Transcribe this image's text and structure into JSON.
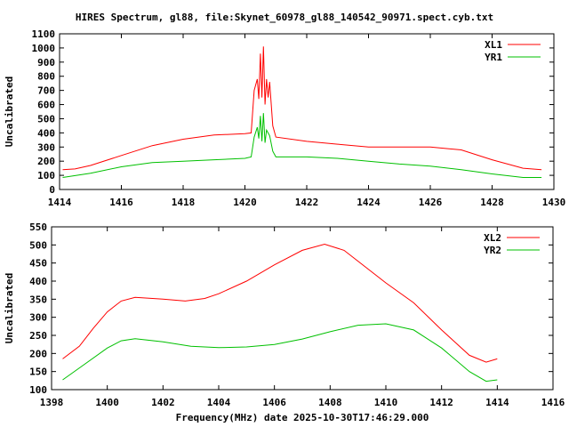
{
  "chart_data": [
    {
      "type": "line",
      "title": "HIRES Spectrum, gl88, file:Skynet_60978_gl88_140542_90971.spect.cyb.txt",
      "xlabel": "",
      "ylabel": "Uncalibrated",
      "xlim": [
        1414,
        1430
      ],
      "ylim": [
        0,
        1100
      ],
      "xticks": [
        1414,
        1416,
        1418,
        1420,
        1422,
        1424,
        1426,
        1428,
        1430
      ],
      "yticks": [
        0,
        100,
        200,
        300,
        400,
        500,
        600,
        700,
        800,
        900,
        1000,
        1100
      ],
      "legend": "top-right",
      "grid": false,
      "series": [
        {
          "name": "XL1",
          "color": "#ff0000",
          "x": [
            1414.1,
            1414.5,
            1415,
            1416,
            1417,
            1418,
            1419,
            1420,
            1420.2,
            1420.3,
            1420.4,
            1420.45,
            1420.5,
            1420.55,
            1420.6,
            1420.65,
            1420.7,
            1420.75,
            1420.8,
            1420.9,
            1421,
            1422,
            1423,
            1424,
            1425,
            1426,
            1427,
            1428,
            1429,
            1429.6
          ],
          "y": [
            140,
            145,
            170,
            240,
            310,
            355,
            385,
            395,
            400,
            700,
            780,
            640,
            960,
            650,
            1010,
            600,
            780,
            650,
            760,
            450,
            370,
            340,
            320,
            300,
            300,
            300,
            280,
            210,
            150,
            140
          ]
        },
        {
          "name": "YR1",
          "color": "#00c000",
          "x": [
            1414.1,
            1415,
            1416,
            1417,
            1418,
            1419,
            1420,
            1420.2,
            1420.3,
            1420.4,
            1420.45,
            1420.5,
            1420.55,
            1420.6,
            1420.65,
            1420.7,
            1420.8,
            1420.9,
            1421,
            1422,
            1423,
            1424,
            1425,
            1426,
            1427,
            1428,
            1429,
            1429.6
          ],
          "y": [
            85,
            115,
            160,
            190,
            200,
            210,
            220,
            230,
            370,
            440,
            360,
            520,
            340,
            540,
            330,
            420,
            380,
            270,
            230,
            230,
            220,
            200,
            180,
            165,
            140,
            110,
            85,
            85
          ]
        }
      ]
    },
    {
      "type": "line",
      "title": "",
      "xlabel": "Frequency(MHz) date 2025-10-30T17:46:29.000",
      "ylabel": "Uncalibrated",
      "xlim": [
        1398,
        1416
      ],
      "ylim": [
        100,
        550
      ],
      "xticks": [
        1398,
        1400,
        1402,
        1404,
        1406,
        1408,
        1410,
        1412,
        1414,
        1416
      ],
      "yticks": [
        100,
        150,
        200,
        250,
        300,
        350,
        400,
        450,
        500,
        550
      ],
      "legend": "top-right",
      "grid": false,
      "series": [
        {
          "name": "XL2",
          "color": "#ff0000",
          "x": [
            1398.4,
            1399,
            1399.5,
            1400,
            1400.5,
            1401,
            1402,
            1402.8,
            1403.5,
            1404,
            1405,
            1406,
            1407,
            1407.8,
            1408.5,
            1409,
            1410,
            1411,
            1412,
            1413,
            1413.6,
            1414
          ],
          "y": [
            185,
            220,
            270,
            315,
            345,
            355,
            350,
            345,
            352,
            365,
            400,
            445,
            485,
            502,
            485,
            455,
            395,
            340,
            265,
            195,
            176,
            185
          ]
        },
        {
          "name": "YR2",
          "color": "#00c000",
          "x": [
            1398.4,
            1399,
            1400,
            1400.5,
            1401,
            1402,
            1403,
            1404,
            1405,
            1406,
            1407,
            1408,
            1409,
            1410,
            1411,
            1412,
            1413,
            1413.6,
            1414
          ],
          "y": [
            127,
            160,
            215,
            235,
            241,
            232,
            220,
            216,
            218,
            225,
            240,
            260,
            278,
            282,
            265,
            215,
            150,
            123,
            127
          ]
        }
      ]
    }
  ]
}
